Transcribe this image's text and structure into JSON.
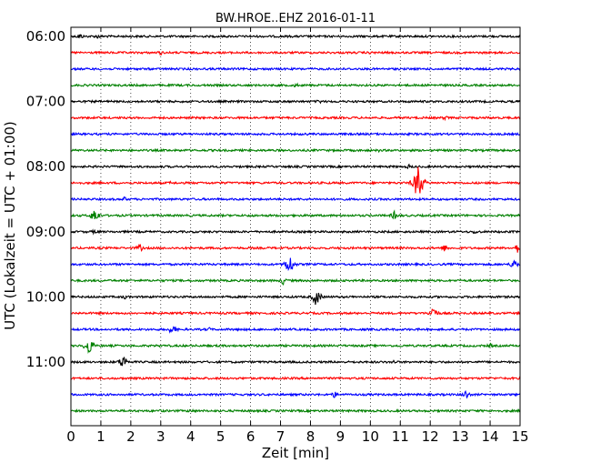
{
  "chart_data": {
    "type": "line",
    "title": "BW.HROE..EHZ 2016-01-11",
    "xlabel": "Zeit  [min]",
    "ylabel": "UTC (Lokalzeit = UTC + 01:00)",
    "xlim": [
      0,
      15
    ],
    "x_ticks": [
      0,
      1,
      2,
      3,
      4,
      5,
      6,
      7,
      8,
      9,
      10,
      11,
      12,
      13,
      14,
      15
    ],
    "x_tick_labels": [
      "0",
      "1",
      "2",
      "3",
      "4",
      "5",
      "6",
      "7",
      "8",
      "9",
      "10",
      "11",
      "12",
      "13",
      "14",
      "15"
    ],
    "y_tick_labels": [
      "06:00",
      "07:00",
      "08:00",
      "09:00",
      "10:00",
      "11:00"
    ],
    "y_tick_trace_index": [
      0,
      4,
      8,
      12,
      16,
      20
    ],
    "trace_minutes": 15,
    "grid": "vertical dotted",
    "color_cycle": [
      "#000000",
      "#ff0000",
      "#0000ff",
      "#008000"
    ],
    "traces": [
      {
        "start": "06:00",
        "events": [
          {
            "t": 0.3,
            "amp": 4
          },
          {
            "t": 0.9,
            "amp": 3
          }
        ]
      },
      {
        "start": "06:15",
        "events": [
          {
            "t": 3.0,
            "amp": 3
          },
          {
            "t": 10.0,
            "amp": 2
          }
        ]
      },
      {
        "start": "06:30",
        "events": []
      },
      {
        "start": "06:45",
        "events": [
          {
            "t": 7.5,
            "amp": 3
          }
        ]
      },
      {
        "start": "07:00",
        "events": [
          {
            "t": 8.3,
            "amp": 3
          }
        ]
      },
      {
        "start": "07:15",
        "events": [
          {
            "t": 12.5,
            "amp": 3
          }
        ]
      },
      {
        "start": "07:30",
        "events": []
      },
      {
        "start": "07:45",
        "events": [
          {
            "t": 10.3,
            "amp": 2
          }
        ]
      },
      {
        "start": "08:00",
        "events": [
          {
            "t": 11.3,
            "amp": 3
          }
        ]
      },
      {
        "start": "08:15",
        "events": [
          {
            "t": 11.6,
            "amp": 26
          },
          {
            "t": 3.3,
            "amp": 2
          }
        ]
      },
      {
        "start": "08:30",
        "events": [
          {
            "t": 1.8,
            "amp": 3
          }
        ]
      },
      {
        "start": "08:45",
        "events": [
          {
            "t": 0.8,
            "amp": 10
          },
          {
            "t": 10.8,
            "amp": 5
          }
        ]
      },
      {
        "start": "09:00",
        "events": [
          {
            "t": 0.8,
            "amp": 3
          },
          {
            "t": 13.5,
            "amp": 3
          }
        ]
      },
      {
        "start": "09:15",
        "events": [
          {
            "t": 2.3,
            "amp": 5
          },
          {
            "t": 12.5,
            "amp": 5
          },
          {
            "t": 14.9,
            "amp": 6
          }
        ]
      },
      {
        "start": "09:30",
        "events": [
          {
            "t": 7.3,
            "amp": 14
          },
          {
            "t": 14.8,
            "amp": 7
          }
        ]
      },
      {
        "start": "09:45",
        "events": [
          {
            "t": 7.1,
            "amp": 5
          }
        ]
      },
      {
        "start": "10:00",
        "events": [
          {
            "t": 8.2,
            "amp": 12
          },
          {
            "t": 1.8,
            "amp": 3
          }
        ]
      },
      {
        "start": "10:15",
        "events": [
          {
            "t": 12.1,
            "amp": 9
          }
        ]
      },
      {
        "start": "10:30",
        "events": [
          {
            "t": 3.4,
            "amp": 7
          },
          {
            "t": 4.6,
            "amp": 3
          }
        ]
      },
      {
        "start": "10:45",
        "events": [
          {
            "t": 0.6,
            "amp": 12
          },
          {
            "t": 14.0,
            "amp": 3
          }
        ]
      },
      {
        "start": "11:00",
        "events": [
          {
            "t": 1.75,
            "amp": 10
          },
          {
            "t": 10.8,
            "amp": 3
          }
        ]
      },
      {
        "start": "11:15",
        "events": [
          {
            "t": 4.3,
            "amp": 2
          }
        ]
      },
      {
        "start": "11:30",
        "events": [
          {
            "t": 8.8,
            "amp": 4
          },
          {
            "t": 13.2,
            "amp": 6
          }
        ]
      },
      {
        "start": "11:45",
        "events": [
          {
            "t": 4.0,
            "amp": 3
          },
          {
            "t": 3.0,
            "amp": 2
          }
        ]
      }
    ]
  }
}
